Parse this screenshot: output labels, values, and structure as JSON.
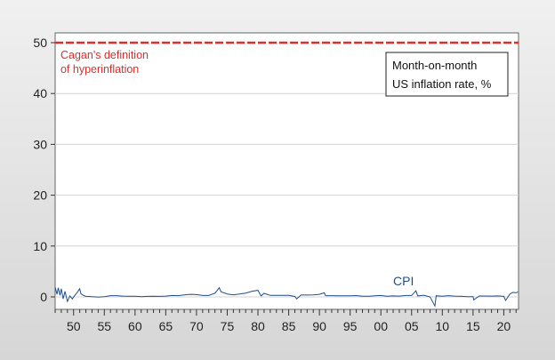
{
  "chart_data": {
    "type": "line",
    "title": "",
    "xlabel": "",
    "ylabel": "",
    "xlim": [
      1947,
      2022.4
    ],
    "ylim": [
      -2.5,
      52
    ],
    "grid": true,
    "yticks": [
      0,
      10,
      20,
      30,
      40,
      50
    ],
    "xtick_labels": [
      {
        "year": 1950,
        "label": "50"
      },
      {
        "year": 1955,
        "label": "55"
      },
      {
        "year": 1960,
        "label": "60"
      },
      {
        "year": 1965,
        "label": "65"
      },
      {
        "year": 1970,
        "label": "70"
      },
      {
        "year": 1975,
        "label": "75"
      },
      {
        "year": 1980,
        "label": "80"
      },
      {
        "year": 1985,
        "label": "85"
      },
      {
        "year": 1990,
        "label": "90"
      },
      {
        "year": 1995,
        "label": "95"
      },
      {
        "year": 2000,
        "label": "00"
      },
      {
        "year": 2005,
        "label": "05"
      },
      {
        "year": 2010,
        "label": "10"
      },
      {
        "year": 2015,
        "label": "15"
      },
      {
        "year": 2020,
        "label": "20"
      }
    ],
    "annotation_box": {
      "line1": "Month-on-month",
      "line2": "US inflation rate, %"
    },
    "reference_line": {
      "value": 50,
      "label_line1": "Cagan's definition",
      "label_line2": "of hyperinflation",
      "color": "#d9302c"
    },
    "series": [
      {
        "name": "CPI",
        "color": "#1f4e8c",
        "x": [
          1947.0,
          1947.3,
          1947.5,
          1947.8,
          1948.0,
          1948.3,
          1948.6,
          1949.0,
          1949.4,
          1949.8,
          1950.2,
          1950.6,
          1951.0,
          1951.2,
          1951.6,
          1952,
          1953,
          1954,
          1955,
          1956,
          1957,
          1958,
          1959,
          1960,
          1961,
          1962,
          1963,
          1964,
          1965,
          1966,
          1967,
          1968,
          1969,
          1970,
          1971,
          1972,
          1973,
          1973.7,
          1974,
          1975,
          1976,
          1977,
          1978,
          1979,
          1980,
          1980.5,
          1981,
          1982,
          1983,
          1984,
          1985,
          1986,
          1986.3,
          1987,
          1988,
          1989,
          1990,
          1990.8,
          1991,
          1992,
          1993,
          1994,
          1995,
          1996,
          1997,
          1998,
          1999,
          2000,
          2001,
          2002,
          2003,
          2004,
          2005,
          2005.7,
          2006,
          2007,
          2008,
          2008.8,
          2009,
          2010,
          2011,
          2012,
          2013,
          2014,
          2015,
          2015.1,
          2016,
          2017,
          2018,
          2019,
          2020,
          2020.3,
          2021,
          2021.5,
          2022,
          2022.3
        ],
        "y": [
          1.9,
          0.5,
          1.8,
          0.3,
          1.6,
          -0.4,
          1.1,
          -0.9,
          0.2,
          -0.4,
          0.3,
          0.9,
          1.6,
          0.6,
          0.3,
          0.1,
          0.05,
          -0.04,
          0.03,
          0.25,
          0.25,
          0.15,
          0.14,
          0.12,
          0.06,
          0.1,
          0.14,
          0.1,
          0.16,
          0.28,
          0.25,
          0.39,
          0.51,
          0.46,
          0.28,
          0.28,
          0.73,
          1.8,
          1.0,
          0.58,
          0.4,
          0.56,
          0.75,
          1.08,
          1.3,
          0.2,
          0.7,
          0.3,
          0.31,
          0.32,
          0.31,
          0.09,
          -0.4,
          0.36,
          0.36,
          0.38,
          0.5,
          0.8,
          0.25,
          0.24,
          0.23,
          0.22,
          0.21,
          0.27,
          0.14,
          0.13,
          0.22,
          0.28,
          0.13,
          0.2,
          0.16,
          0.28,
          0.28,
          1.2,
          0.2,
          0.34,
          0.0,
          -1.8,
          0.23,
          0.12,
          0.25,
          0.15,
          0.12,
          0.06,
          0.06,
          -0.6,
          0.17,
          0.17,
          0.16,
          0.19,
          0.11,
          -0.7,
          0.57,
          0.9,
          0.8,
          1.0
        ]
      }
    ]
  }
}
